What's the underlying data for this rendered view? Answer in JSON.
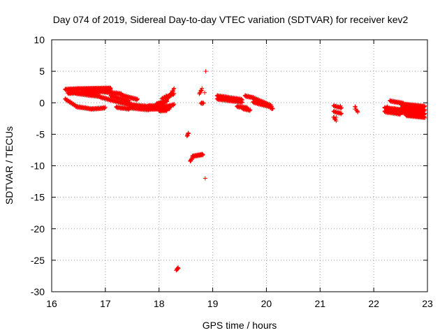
{
  "chart_data": {
    "type": "scatter",
    "title": "Day 074 of 2019, Sidereal Day-to-day VTEC variation (SDTVAR) for receiver kev2",
    "xlabel": "GPS time / hours",
    "ylabel": "SDTVAR / TECUs",
    "xlim": [
      16,
      23
    ],
    "ylim": [
      -30,
      10
    ],
    "xticks": [
      "16",
      "17",
      "18",
      "19",
      "20",
      "21",
      "22",
      "23"
    ],
    "yticks": [
      "10",
      "5",
      "0",
      "-5",
      "-10",
      "-15",
      "-20",
      "-25",
      "-30"
    ],
    "grid": true,
    "marker": "+",
    "color": "#ff0000",
    "segments": [
      {
        "x0": 16.25,
        "x1": 16.5,
        "y0": 2.1,
        "y1": 2.2,
        "step": 0.006
      },
      {
        "x0": 16.5,
        "x1": 17.1,
        "y0": 2.2,
        "y1": 2.3,
        "step": 0.006
      },
      {
        "x0": 16.6,
        "x1": 17.1,
        "y0": 1.9,
        "y1": 2.0,
        "step": 0.008
      },
      {
        "x0": 16.3,
        "x1": 16.9,
        "y0": 1.5,
        "y1": 1.7,
        "step": 0.008
      },
      {
        "x0": 16.9,
        "x1": 17.3,
        "y0": 1.8,
        "y1": 1.4,
        "step": 0.008
      },
      {
        "x0": 17.1,
        "x1": 17.45,
        "y0": 1.1,
        "y1": 0.2,
        "step": 0.008
      },
      {
        "x0": 17.3,
        "x1": 17.6,
        "y0": 1.2,
        "y1": 0.5,
        "step": 0.008
      },
      {
        "x0": 16.45,
        "x1": 16.9,
        "y0": 1.5,
        "y1": 1.0,
        "step": 0.008
      },
      {
        "x0": 16.9,
        "x1": 17.3,
        "y0": 0.9,
        "y1": 0.0,
        "step": 0.008
      },
      {
        "x0": 17.3,
        "x1": 17.6,
        "y0": 0.0,
        "y1": -0.6,
        "step": 0.008
      },
      {
        "x0": 16.25,
        "x1": 16.45,
        "y0": 0.6,
        "y1": -0.5,
        "step": 0.008
      },
      {
        "x0": 16.45,
        "x1": 16.75,
        "y0": -0.6,
        "y1": -1.0,
        "step": 0.008
      },
      {
        "x0": 16.75,
        "x1": 17.0,
        "y0": -1.0,
        "y1": -0.8,
        "step": 0.008
      },
      {
        "x0": 17.2,
        "x1": 17.45,
        "y0": -0.7,
        "y1": -1.0,
        "step": 0.008
      },
      {
        "x0": 17.45,
        "x1": 17.8,
        "y0": -0.8,
        "y1": -1.1,
        "step": 0.008
      },
      {
        "x0": 17.45,
        "x1": 17.8,
        "y0": -0.3,
        "y1": -0.6,
        "step": 0.008
      },
      {
        "x0": 17.8,
        "x1": 18.2,
        "y0": -1.0,
        "y1": -0.9,
        "step": 0.006
      },
      {
        "x0": 17.8,
        "x1": 18.2,
        "y0": -0.5,
        "y1": -0.6,
        "step": 0.006
      },
      {
        "x0": 17.95,
        "x1": 18.15,
        "y0": -0.2,
        "y1": 0.3,
        "step": 0.006
      },
      {
        "x0": 18.0,
        "x1": 18.15,
        "y0": -1.3,
        "y1": -1.2,
        "step": 0.008
      },
      {
        "x0": 18.05,
        "x1": 18.15,
        "y0": 0.6,
        "y1": 1.1,
        "step": 0.01
      },
      {
        "x0": 18.15,
        "x1": 18.28,
        "y0": 0.5,
        "y1": 2.2,
        "step": 0.008
      },
      {
        "x0": 18.15,
        "x1": 18.28,
        "y0": -0.6,
        "y1": -0.3,
        "step": 0.008
      },
      {
        "x0": 18.16,
        "x1": 18.28,
        "y0": 1.0,
        "y1": 1.4,
        "step": 0.01
      },
      {
        "x0": 18.33,
        "x1": 18.36,
        "y0": -26.5,
        "y1": -26.2,
        "step": 0.005
      },
      {
        "x0": 18.52,
        "x1": 18.55,
        "y0": -5.3,
        "y1": -4.8,
        "step": 0.005
      },
      {
        "x0": 18.58,
        "x1": 18.62,
        "y0": -9.3,
        "y1": -8.8,
        "step": 0.005
      },
      {
        "x0": 18.62,
        "x1": 18.82,
        "y0": -8.5,
        "y1": -8.2,
        "step": 0.006
      },
      {
        "x0": 18.75,
        "x1": 18.8,
        "y0": 1.4,
        "y1": 2.2,
        "step": 0.006
      },
      {
        "x0": 18.78,
        "x1": 18.82,
        "y0": -0.1,
        "y1": 0.0,
        "step": 0.01
      },
      {
        "x0": 19.08,
        "x1": 19.55,
        "y0": 1.1,
        "y1": 0.5,
        "step": 0.008
      },
      {
        "x0": 19.08,
        "x1": 19.55,
        "y0": 0.6,
        "y1": 0.1,
        "step": 0.008
      },
      {
        "x0": 19.45,
        "x1": 19.65,
        "y0": -0.6,
        "y1": -0.8,
        "step": 0.008
      },
      {
        "x0": 19.55,
        "x1": 19.7,
        "y0": -0.9,
        "y1": -1.2,
        "step": 0.008
      },
      {
        "x0": 19.6,
        "x1": 19.75,
        "y0": 1.1,
        "y1": 0.8,
        "step": 0.008
      },
      {
        "x0": 19.75,
        "x1": 20.1,
        "y0": 0.8,
        "y1": -0.5,
        "step": 0.008
      },
      {
        "x0": 19.75,
        "x1": 20.05,
        "y0": 0.1,
        "y1": -0.6,
        "step": 0.008
      },
      {
        "x0": 20.05,
        "x1": 20.12,
        "y0": -0.6,
        "y1": -1.0,
        "step": 0.008
      },
      {
        "x0": 21.25,
        "x1": 21.4,
        "y0": -0.5,
        "y1": -0.8,
        "step": 0.01
      },
      {
        "x0": 21.25,
        "x1": 21.4,
        "y0": -1.4,
        "y1": -1.7,
        "step": 0.01
      },
      {
        "x0": 21.25,
        "x1": 21.3,
        "y0": -2.3,
        "y1": -2.8,
        "step": 0.008
      },
      {
        "x0": 21.65,
        "x1": 21.7,
        "y0": -0.6,
        "y1": -1.5,
        "step": 0.01
      },
      {
        "x0": 22.2,
        "x1": 22.5,
        "y0": -0.8,
        "y1": -1.1,
        "step": 0.008
      },
      {
        "x0": 22.2,
        "x1": 22.5,
        "y0": -1.4,
        "y1": -1.8,
        "step": 0.008
      },
      {
        "x0": 22.3,
        "x1": 22.55,
        "y0": 0.3,
        "y1": -0.1,
        "step": 0.008
      },
      {
        "x0": 22.5,
        "x1": 22.95,
        "y0": -0.2,
        "y1": -0.6,
        "step": 0.006
      },
      {
        "x0": 22.5,
        "x1": 22.95,
        "y0": -0.9,
        "y1": -1.2,
        "step": 0.006
      },
      {
        "x0": 22.5,
        "x1": 22.95,
        "y0": -1.5,
        "y1": -1.8,
        "step": 0.006
      },
      {
        "x0": 22.6,
        "x1": 22.95,
        "y0": -2.0,
        "y1": -2.3,
        "step": 0.006
      }
    ],
    "points": [
      [
        18.87,
        5.0
      ],
      [
        18.86,
        -12.0
      ],
      [
        18.32,
        -26.6
      ],
      [
        18.8,
        -0.2
      ],
      [
        18.83,
        -0.1
      ],
      [
        21.3,
        -2.3
      ],
      [
        21.65,
        -1.0
      ],
      [
        21.7,
        -1.5
      ],
      [
        21.3,
        -0.5
      ],
      [
        21.38,
        -0.5
      ],
      [
        22.25,
        -1.6
      ],
      [
        22.25,
        -0.6
      ],
      [
        18.85,
        1.6
      ]
    ]
  }
}
